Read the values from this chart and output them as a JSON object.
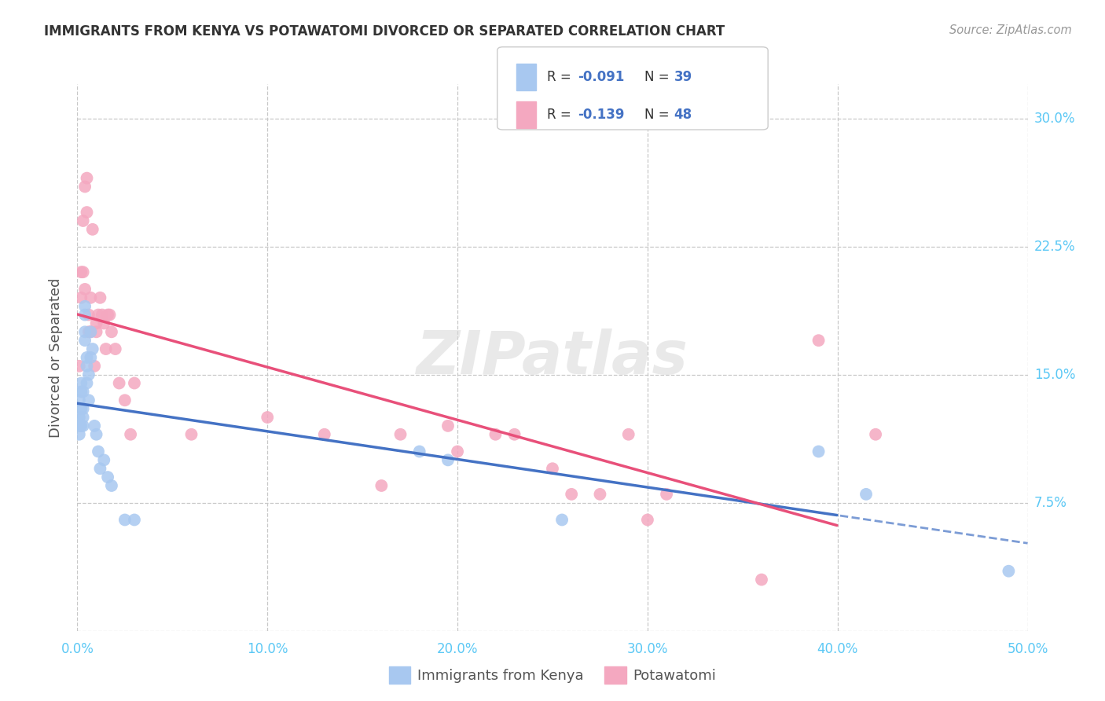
{
  "title": "IMMIGRANTS FROM KENYA VS POTAWATOMI DIVORCED OR SEPARATED CORRELATION CHART",
  "source": "Source: ZipAtlas.com",
  "ylabel": "Divorced or Separated",
  "xmin": 0.0,
  "xmax": 0.5,
  "ymin": 0.0,
  "ymax": 0.32,
  "xticks": [
    0.0,
    0.1,
    0.2,
    0.3,
    0.4,
    0.5
  ],
  "xticklabels": [
    "0.0%",
    "10.0%",
    "20.0%",
    "30.0%",
    "40.0%",
    "50.0%"
  ],
  "yticks": [
    0.0,
    0.075,
    0.15,
    0.225,
    0.3
  ],
  "yticklabels": [
    "",
    "7.5%",
    "15.0%",
    "22.5%",
    "30.0%"
  ],
  "grid_color": "#c8c8c8",
  "background_color": "#ffffff",
  "tick_label_color": "#5bc8f5",
  "legend_color1": "#a8c8f0",
  "legend_color2": "#f4a8c0",
  "series1_color": "#a8c8f0",
  "series2_color": "#f4a8c0",
  "line1_color": "#4472c4",
  "line2_color": "#e8507a",
  "legend_val_color": "#4472c4",
  "watermark": "ZIPatlas",
  "kenya_x": [
    0.001,
    0.001,
    0.001,
    0.001,
    0.002,
    0.002,
    0.002,
    0.002,
    0.003,
    0.003,
    0.003,
    0.003,
    0.004,
    0.004,
    0.004,
    0.004,
    0.005,
    0.005,
    0.005,
    0.006,
    0.006,
    0.007,
    0.007,
    0.008,
    0.009,
    0.01,
    0.011,
    0.012,
    0.014,
    0.016,
    0.018,
    0.025,
    0.03,
    0.18,
    0.195,
    0.255,
    0.39,
    0.415,
    0.49
  ],
  "kenya_y": [
    0.125,
    0.135,
    0.12,
    0.115,
    0.14,
    0.13,
    0.145,
    0.12,
    0.13,
    0.14,
    0.125,
    0.12,
    0.175,
    0.185,
    0.19,
    0.17,
    0.16,
    0.155,
    0.145,
    0.15,
    0.135,
    0.175,
    0.16,
    0.165,
    0.12,
    0.115,
    0.105,
    0.095,
    0.1,
    0.09,
    0.085,
    0.065,
    0.065,
    0.105,
    0.1,
    0.065,
    0.105,
    0.08,
    0.035
  ],
  "potawatomi_x": [
    0.001,
    0.002,
    0.002,
    0.003,
    0.003,
    0.004,
    0.004,
    0.005,
    0.005,
    0.006,
    0.006,
    0.007,
    0.007,
    0.008,
    0.009,
    0.01,
    0.01,
    0.011,
    0.012,
    0.013,
    0.014,
    0.015,
    0.016,
    0.017,
    0.018,
    0.02,
    0.022,
    0.025,
    0.028,
    0.03,
    0.06,
    0.1,
    0.13,
    0.16,
    0.17,
    0.195,
    0.2,
    0.22,
    0.23,
    0.25,
    0.26,
    0.275,
    0.29,
    0.3,
    0.31,
    0.36,
    0.39,
    0.42
  ],
  "potawatomi_y": [
    0.155,
    0.21,
    0.195,
    0.21,
    0.24,
    0.2,
    0.26,
    0.245,
    0.265,
    0.175,
    0.185,
    0.175,
    0.195,
    0.235,
    0.155,
    0.18,
    0.175,
    0.185,
    0.195,
    0.185,
    0.18,
    0.165,
    0.185,
    0.185,
    0.175,
    0.165,
    0.145,
    0.135,
    0.115,
    0.145,
    0.115,
    0.125,
    0.115,
    0.085,
    0.115,
    0.12,
    0.105,
    0.115,
    0.115,
    0.095,
    0.08,
    0.08,
    0.115,
    0.065,
    0.08,
    0.03,
    0.17,
    0.115
  ]
}
